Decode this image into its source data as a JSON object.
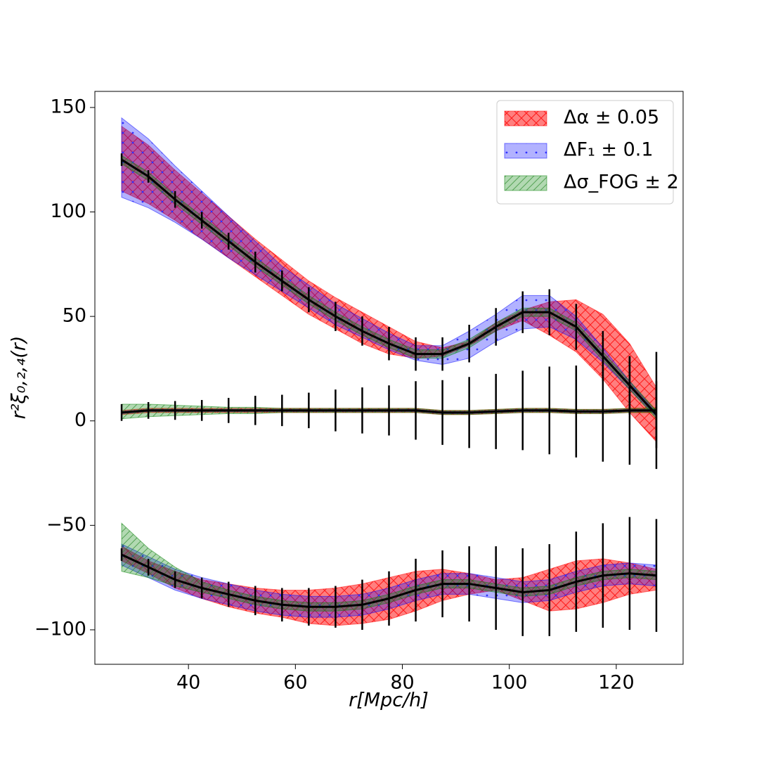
{
  "chart_data": {
    "type": "line_band",
    "xlabel": "r[Mpc/h]",
    "ylabel": "r²ξ₀,₂,₄(r)",
    "xlim": [
      22.5,
      132.5
    ],
    "ylim": [
      -116.5,
      157.7
    ],
    "xticks": [
      40,
      60,
      80,
      100,
      120
    ],
    "yticks": [
      -100,
      -50,
      0,
      50,
      100,
      150
    ],
    "x": [
      27.5,
      32.5,
      37.5,
      42.5,
      47.5,
      52.5,
      57.5,
      62.5,
      67.5,
      72.5,
      77.5,
      82.5,
      87.5,
      92.5,
      97.5,
      102.5,
      107.5,
      112.5,
      117.5,
      122.5,
      127.5
    ],
    "legend": "upper right",
    "bands": [
      {
        "name": "Δα ± 0.05",
        "color": "#ff0000",
        "regions": [
          {
            "lower": [
              110,
              104,
              96,
              87,
              78,
              69,
              60,
              51,
              44,
              37,
              32,
              30,
              31,
              36,
              43,
              48,
              41,
              33,
              20,
              4,
              -10
            ],
            "upper": [
              141,
              132,
              120,
              109,
              98,
              87,
              77,
              67,
              59,
              52,
              45,
              38,
              35,
              38,
              47,
              53,
              57,
              58,
              51,
              37,
              16
            ]
          },
          {
            "lower": [
              3,
              4,
              4,
              4,
              4,
              4,
              4,
              4,
              4,
              4,
              4,
              4,
              3,
              3,
              3.5,
              4,
              4,
              3.5,
              3.5,
              4,
              4
            ],
            "upper": [
              5,
              6,
              6,
              6,
              6,
              6,
              6,
              6,
              6,
              6,
              6,
              6,
              5,
              5,
              5.5,
              6,
              6,
              5.5,
              5.5,
              6,
              6
            ]
          },
          {
            "lower": [
              -67,
              -73,
              -80,
              -85,
              -89,
              -92,
              -94,
              -97,
              -98,
              -97,
              -95,
              -91,
              -86,
              -83,
              -81,
              -86,
              -91,
              -90,
              -87,
              -83,
              -81
            ],
            "upper": [
              -60,
              -67,
              -72,
              -76,
              -78,
              -80,
              -81,
              -81,
              -80,
              -78,
              -75,
              -72,
              -71,
              -73,
              -76,
              -75,
              -71,
              -67,
              -66,
              -68,
              -71
            ]
          }
        ]
      },
      {
        "name": "ΔF₁ ± 0.1",
        "color": "#0000ff",
        "regions": [
          {
            "lower": [
              107,
              102,
              95,
              87,
              78,
              70,
              62,
              54,
              46,
              40,
              34,
              29,
              27,
              30,
              38,
              44,
              45,
              39,
              28,
              15,
              2
            ],
            "upper": [
              145,
              135,
              122,
              110,
              98,
              86,
              74,
              65,
              56,
              49,
              42,
              36,
              36,
              43,
              51,
              60,
              60,
              50,
              35,
              19,
              4
            ]
          },
          {
            "lower": [
              3.5,
              4.5,
              4.5,
              4.5,
              4.5,
              4.5,
              4.5,
              4.5,
              4.5,
              4.5,
              4.5,
              4.5,
              3.5,
              3.5,
              4,
              4.5,
              4.5,
              4,
              4,
              4.5,
              4.5
            ],
            "upper": [
              4.5,
              5.5,
              5.5,
              5.5,
              5.5,
              5.5,
              5.5,
              5.5,
              5.5,
              5.5,
              5.5,
              5.5,
              4.5,
              4.5,
              5,
              5.5,
              5.5,
              5,
              5,
              5.5,
              5.5
            ]
          },
          {
            "lower": [
              -69,
              -75,
              -81,
              -85,
              -88,
              -91,
              -93,
              -94,
              -94,
              -93,
              -90,
              -86,
              -83,
              -83,
              -85,
              -87,
              -86,
              -82,
              -79,
              -78,
              -79
            ],
            "upper": [
              -59,
              -65,
              -71,
              -75,
              -78,
              -81,
              -83,
              -84,
              -84,
              -83,
              -80,
              -76,
              -73,
              -73,
              -75,
              -77,
              -76,
              -72,
              -69,
              -68,
              -69
            ]
          }
        ]
      },
      {
        "name": "Δσ_FOG ± 2",
        "color": "#008000",
        "regions": [
          {
            "lower": [
              123,
              115,
              104,
              94,
              84,
              74,
              65,
              56,
              48,
              41,
              35,
              30,
              30,
              35,
              43,
              50,
              50,
              43,
              29,
              15,
              1
            ],
            "upper": [
              127,
              119,
              108,
              98,
              88,
              78,
              69,
              60,
              52,
              45,
              39,
              34,
              34,
              39,
              47,
              54,
              54,
              47,
              33,
              19,
              5
            ]
          },
          {
            "lower": [
              1,
              2,
              2.5,
              3,
              3.5,
              3.5,
              4,
              4,
              4,
              4,
              4,
              4,
              3,
              3,
              3.5,
              4,
              4,
              3.5,
              3.5,
              4,
              4
            ],
            "upper": [
              8,
              8,
              7.5,
              7,
              6.5,
              6.5,
              6,
              6,
              6,
              6,
              6,
              6,
              5,
              5,
              5.5,
              6,
              6,
              5.5,
              5.5,
              6,
              6
            ]
          },
          {
            "lower": [
              -72,
              -75,
              -79,
              -82,
              -85,
              -88,
              -90,
              -91,
              -91,
              -90,
              -87,
              -83,
              -80,
              -80,
              -82,
              -84,
              -83,
              -79,
              -76,
              -75,
              -76
            ],
            "upper": [
              -49,
              -61,
              -70,
              -77,
              -81,
              -84,
              -86,
              -87,
              -87,
              -86,
              -83,
              -79,
              -76,
              -76,
              -78,
              -80,
              -79,
              -75,
              -72,
              -71,
              -72
            ]
          }
        ]
      }
    ],
    "series": [
      {
        "color": "#000000",
        "values": [
          125,
          117,
          106,
          96,
          86,
          76,
          67,
          58,
          50,
          43,
          37,
          32,
          32,
          37,
          45,
          52,
          52,
          45,
          31,
          17,
          3
        ],
        "errors": [
          3,
          3,
          4,
          4,
          4,
          5,
          5,
          6,
          7,
          7,
          8,
          8,
          8,
          9,
          9,
          10,
          11,
          11,
          12,
          14,
          16
        ]
      },
      {
        "color": "#000000",
        "values": [
          4,
          5,
          5,
          5,
          5,
          5,
          5,
          5,
          5,
          5,
          5,
          5,
          4,
          4,
          4.5,
          5,
          5,
          4.5,
          4.5,
          5,
          5
        ],
        "errors": [
          4,
          4,
          4.5,
          5,
          6,
          7,
          7.5,
          8.5,
          10,
          11,
          12,
          14,
          15.5,
          17,
          18,
          19,
          21,
          22,
          24,
          26,
          28
        ]
      },
      {
        "color": "#000000",
        "values": [
          -64,
          -70,
          -76,
          -80,
          -83,
          -86,
          -88,
          -89,
          -89,
          -88,
          -85,
          -81,
          -78,
          -78,
          -80,
          -82,
          -81,
          -77,
          -74,
          -73,
          -74
        ],
        "errors": [
          3,
          4,
          4,
          5,
          6,
          7,
          8,
          9,
          10,
          12,
          13,
          15,
          16,
          18,
          20,
          21,
          22,
          24,
          25,
          27,
          27
        ]
      }
    ]
  }
}
